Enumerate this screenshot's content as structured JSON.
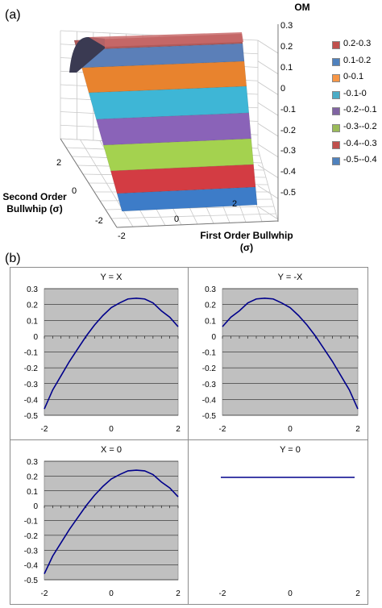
{
  "panel_labels": [
    "(a)",
    "(b)"
  ],
  "surface": {
    "z_axis_title": "OM",
    "z_ticks": [
      "0.3",
      "0.2",
      "0.1",
      "0",
      "-0.1",
      "-0.2",
      "-0.3",
      "-0.4",
      "-0.5"
    ],
    "y_axis_title_line1": "Second Order",
    "y_axis_title_line2": "Bullwhip (σ)",
    "y_ticks": [
      "2",
      "0",
      "-2"
    ],
    "x_axis_title_line1": "First Order Bullwhip",
    "x_axis_title_line2": "(σ)",
    "x_ticks": [
      "-2",
      "0",
      "2"
    ],
    "legend": [
      {
        "label": "0.2-0.3",
        "color": "#c0504d"
      },
      {
        "label": "0.1-0.2",
        "color": "#4f81bd"
      },
      {
        "label": "0-0.1",
        "color": "#f79646"
      },
      {
        "label": "-0.1-0",
        "color": "#4bacc6"
      },
      {
        "label": "-0.2--0.1",
        "color": "#8064a2"
      },
      {
        "label": "-0.3--0.2",
        "color": "#9bbb59"
      },
      {
        "label": "-0.4--0.3",
        "color": "#c0504d"
      },
      {
        "label": "-0.5--0.4",
        "color": "#4f81bd"
      }
    ]
  },
  "chart_data": [
    {
      "type": "area",
      "title": "",
      "xlabel": "First Order Bullwhip (σ)",
      "ylabel": "Second Order Bullwhip (σ)",
      "zlabel": "OM",
      "x_range": [
        -2,
        2
      ],
      "y_range": [
        -2,
        2
      ],
      "z_range": [
        -0.5,
        0.3
      ],
      "profile_along_x": {
        "x": [
          -2,
          -1.5,
          -1,
          -0.5,
          0,
          0.5,
          1,
          1.5,
          2
        ],
        "z": [
          0.2,
          0.1,
          0,
          -0.1,
          -0.2,
          -0.3,
          -0.35,
          -0.45,
          -0.5
        ]
      },
      "legend": [
        "0.2-0.3",
        "0.1-0.2",
        "0-0.1",
        "-0.1-0",
        "-0.2--0.1",
        "-0.3--0.2",
        "-0.4--0.3",
        "-0.5--0.4"
      ]
    },
    {
      "type": "line",
      "title": "Y = X",
      "x": [
        -2,
        -1.75,
        -1.5,
        -1.25,
        -1,
        -0.75,
        -0.5,
        -0.25,
        0,
        0.25,
        0.5,
        0.75,
        1,
        1.25,
        1.5,
        1.75,
        2
      ],
      "y": [
        -0.46,
        -0.34,
        -0.25,
        -0.16,
        -0.08,
        0.0,
        0.07,
        0.13,
        0.18,
        0.21,
        0.235,
        0.24,
        0.235,
        0.21,
        0.16,
        0.12,
        0.06
      ],
      "xticks": [
        "-2",
        "0",
        "2"
      ],
      "ylim": [
        -0.5,
        0.3
      ],
      "yticks": [
        "0.3",
        "0.2",
        "0.1",
        "0",
        "-0.1",
        "-0.2",
        "-0.3",
        "-0.4",
        "-0.5"
      ],
      "grid": true,
      "color": "#00008b"
    },
    {
      "type": "line",
      "title": "Y = -X",
      "x": [
        -2,
        -1.75,
        -1.5,
        -1.25,
        -1,
        -0.75,
        -0.5,
        -0.25,
        0,
        0.25,
        0.5,
        0.75,
        1,
        1.25,
        1.5,
        1.75,
        2
      ],
      "y": [
        0.06,
        0.12,
        0.16,
        0.21,
        0.235,
        0.24,
        0.235,
        0.21,
        0.18,
        0.13,
        0.07,
        0.0,
        -0.08,
        -0.16,
        -0.25,
        -0.34,
        -0.46
      ],
      "xticks": [
        "-2",
        "0",
        "2"
      ],
      "ylim": [
        -0.5,
        0.3
      ],
      "yticks": [
        "0.3",
        "0.2",
        "0.1",
        "0",
        "-0.1",
        "-0.2",
        "-0.3",
        "-0.4",
        "-0.5"
      ],
      "grid": true,
      "color": "#00008b"
    },
    {
      "type": "line",
      "title": "X = 0",
      "x": [
        -2,
        -1.75,
        -1.5,
        -1.25,
        -1,
        -0.75,
        -0.5,
        -0.25,
        0,
        0.25,
        0.5,
        0.75,
        1,
        1.25,
        1.5,
        1.75,
        2
      ],
      "y": [
        -0.46,
        -0.34,
        -0.25,
        -0.16,
        -0.08,
        0.0,
        0.07,
        0.13,
        0.18,
        0.21,
        0.235,
        0.24,
        0.235,
        0.21,
        0.16,
        0.12,
        0.06
      ],
      "xticks": [
        "-2",
        "0",
        "2"
      ],
      "ylim": [
        -0.5,
        0.3
      ],
      "yticks": [
        "0.3",
        "0.2",
        "0.1",
        "0",
        "-0.1",
        "-0.2",
        "-0.3",
        "-0.4",
        "-0.5"
      ],
      "grid": true,
      "color": "#00008b"
    },
    {
      "type": "line",
      "title": "Y = 0",
      "x": [
        -2,
        2
      ],
      "y": [
        0.2,
        0.2
      ],
      "xticks": [
        "-2",
        "0",
        "2"
      ],
      "ylim": [
        0,
        0.3
      ],
      "yticks": [],
      "grid": false,
      "color": "#00008b"
    }
  ]
}
